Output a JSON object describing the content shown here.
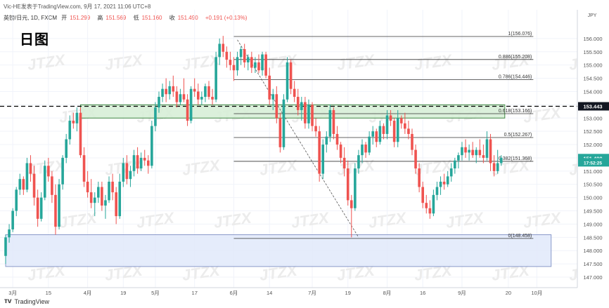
{
  "header": {
    "line1": "Vic-HE发表于TradingView.com, 9月 17, 2021 11:06 UTC+8",
    "symbol": "英镑/日元, 1D, FXCM",
    "open_label": "开",
    "open": "151.299",
    "high_label": "高",
    "high": "151.569",
    "low_label": "低",
    "low": "151.160",
    "close_label": "收",
    "close": "151.490",
    "change": "+0.191 (+0.13%)"
  },
  "title_tag": "日图",
  "currency": "JPY",
  "watermark": "JTZX",
  "footer": {
    "brand": "TradingView"
  },
  "colors": {
    "up": "#26a69a",
    "down": "#ef5350",
    "zone_green": "#d8efd8",
    "zone_blue": "#e3eafb",
    "price_tag_black": "#131722",
    "price_tag_teal": "#26a69a"
  },
  "chart_data": {
    "type": "candlestick",
    "y_range": [
      147.0,
      156.5
    ],
    "y_ticks": [
      "156.000",
      "155.500",
      "155.000",
      "154.500",
      "154.000",
      "153.500",
      "153.000",
      "152.500",
      "152.000",
      "151.500",
      "151.000",
      "150.500",
      "150.000",
      "149.500",
      "149.000",
      "148.500",
      "148.000",
      "147.500",
      "147.000"
    ],
    "x_labels": [
      {
        "label": "3月",
        "day": 2
      },
      {
        "label": "15",
        "day": 12
      },
      {
        "label": "4月",
        "day": 23
      },
      {
        "label": "19",
        "day": 33
      },
      {
        "label": "5月",
        "day": 42
      },
      {
        "label": "17",
        "day": 53
      },
      {
        "label": "6月",
        "day": 64
      },
      {
        "label": "14",
        "day": 74
      },
      {
        "label": "7月",
        "day": 86
      },
      {
        "label": "19",
        "day": 96
      },
      {
        "label": "8月",
        "day": 107
      },
      {
        "label": "16",
        "day": 117
      },
      {
        "label": "9月",
        "day": 128
      },
      {
        "label": "20",
        "day": 141
      },
      {
        "label": "10月",
        "day": 149
      }
    ],
    "price_labels": [
      {
        "text": "153.443",
        "value": 153.443,
        "style": "black"
      },
      {
        "text": "151.490",
        "value": 151.49,
        "style": "teal"
      },
      {
        "text": "17:52:25",
        "value": 151.33,
        "style": "teal-small"
      }
    ],
    "fibonacci": {
      "start_day": 64,
      "end_day": 148,
      "levels": [
        {
          "label": "1(156.076)",
          "value": 156.076
        },
        {
          "label": "0.886(155.208)",
          "value": 155.208
        },
        {
          "label": "0.786(154.446)",
          "value": 154.446
        },
        {
          "label": "0.618(153.166)",
          "value": 153.166
        },
        {
          "label": "0.5(152.267)",
          "value": 152.267
        },
        {
          "label": "0.382(151.368)",
          "value": 151.368
        },
        {
          "label": "0(148.458)",
          "value": 148.458
        }
      ]
    },
    "zones": [
      {
        "name": "resistance",
        "from_day": 21,
        "to_day": 140,
        "low": 153.0,
        "high": 153.5
      },
      {
        "name": "support",
        "from_day": 0,
        "to_day": 153,
        "low": 147.4,
        "high": 148.6
      }
    ],
    "dashed_level": 153.443,
    "diagonal": {
      "from_day": 65,
      "from_value": 155.95,
      "to_day": 99,
      "to_value": 148.5
    },
    "candles": [
      [
        147.8,
        148.6,
        147.5,
        148.5
      ],
      [
        148.5,
        149.0,
        148.3,
        148.8
      ],
      [
        148.8,
        149.6,
        148.7,
        149.5
      ],
      [
        149.5,
        150.4,
        149.3,
        150.3
      ],
      [
        150.3,
        150.9,
        150.1,
        150.7
      ],
      [
        150.7,
        150.8,
        150.1,
        150.3
      ],
      [
        150.3,
        151.5,
        150.2,
        151.3
      ],
      [
        151.3,
        151.6,
        150.6,
        150.9
      ],
      [
        150.9,
        151.2,
        149.7,
        150.0
      ],
      [
        150.0,
        150.3,
        148.9,
        149.2
      ],
      [
        149.2,
        150.2,
        149.1,
        150.0
      ],
      [
        150.0,
        151.4,
        149.9,
        151.2
      ],
      [
        151.2,
        151.5,
        150.6,
        150.8
      ],
      [
        150.8,
        151.0,
        149.8,
        150.1
      ],
      [
        150.1,
        150.5,
        148.6,
        148.9
      ],
      [
        148.9,
        150.7,
        148.8,
        150.5
      ],
      [
        150.5,
        151.6,
        150.3,
        151.5
      ],
      [
        151.5,
        152.4,
        151.3,
        152.2
      ],
      [
        152.2,
        153.1,
        152.0,
        152.9
      ],
      [
        152.9,
        153.2,
        152.6,
        152.8
      ],
      [
        152.8,
        153.4,
        152.5,
        153.2
      ],
      [
        153.2,
        153.4,
        151.5,
        151.6
      ],
      [
        151.6,
        151.9,
        150.4,
        150.6
      ],
      [
        150.6,
        151.0,
        150.0,
        150.2
      ],
      [
        150.2,
        150.7,
        149.6,
        149.8
      ],
      [
        149.8,
        150.2,
        149.3,
        150.0
      ],
      [
        150.0,
        150.6,
        149.8,
        150.4
      ],
      [
        150.4,
        150.6,
        149.5,
        149.7
      ],
      [
        149.7,
        150.1,
        149.2,
        149.9
      ],
      [
        149.9,
        150.8,
        149.8,
        150.6
      ],
      [
        150.6,
        150.9,
        149.9,
        150.2
      ],
      [
        150.2,
        150.4,
        149.0,
        149.3
      ],
      [
        149.3,
        150.9,
        149.2,
        150.6
      ],
      [
        150.6,
        151.5,
        150.4,
        151.3
      ],
      [
        151.3,
        151.6,
        150.5,
        150.7
      ],
      [
        150.7,
        151.2,
        150.4,
        151.0
      ],
      [
        151.0,
        151.8,
        150.8,
        151.6
      ],
      [
        151.6,
        151.9,
        150.9,
        151.1
      ],
      [
        151.1,
        151.7,
        151.0,
        151.5
      ],
      [
        151.5,
        151.8,
        151.2,
        151.4
      ],
      [
        151.4,
        151.6,
        150.9,
        151.2
      ],
      [
        151.2,
        152.9,
        151.1,
        152.7
      ],
      [
        152.7,
        153.6,
        152.5,
        153.4
      ],
      [
        153.4,
        154.0,
        153.2,
        153.8
      ],
      [
        153.8,
        154.3,
        153.6,
        154.1
      ],
      [
        154.1,
        154.5,
        153.6,
        153.9
      ],
      [
        153.9,
        154.4,
        153.7,
        154.2
      ],
      [
        154.2,
        154.6,
        153.8,
        154.0
      ],
      [
        154.0,
        154.2,
        153.4,
        153.6
      ],
      [
        153.6,
        154.1,
        153.5,
        153.9
      ],
      [
        153.9,
        154.5,
        153.6,
        153.7
      ],
      [
        153.7,
        153.9,
        152.7,
        152.9
      ],
      [
        152.9,
        154.2,
        152.8,
        154.1
      ],
      [
        154.1,
        154.5,
        153.8,
        154.0
      ],
      [
        154.0,
        154.3,
        153.5,
        153.7
      ],
      [
        153.7,
        154.0,
        153.5,
        153.8
      ],
      [
        153.8,
        154.3,
        153.6,
        154.2
      ],
      [
        154.2,
        154.4,
        153.7,
        153.8
      ],
      [
        153.8,
        154.1,
        153.5,
        153.7
      ],
      [
        153.7,
        155.5,
        153.6,
        155.3
      ],
      [
        155.3,
        156.0,
        155.0,
        155.8
      ],
      [
        155.8,
        156.1,
        155.3,
        155.5
      ],
      [
        155.5,
        155.7,
        154.9,
        155.2
      ],
      [
        155.2,
        155.5,
        154.8,
        155.0
      ],
      [
        155.0,
        155.3,
        154.4,
        154.8
      ],
      [
        154.8,
        155.5,
        154.6,
        155.3
      ],
      [
        155.3,
        155.7,
        155.0,
        155.6
      ],
      [
        155.6,
        155.8,
        154.9,
        155.1
      ],
      [
        155.1,
        155.4,
        154.8,
        155.3
      ],
      [
        155.3,
        155.5,
        154.7,
        154.9
      ],
      [
        154.9,
        155.3,
        154.7,
        155.1
      ],
      [
        155.1,
        155.4,
        154.7,
        154.8
      ],
      [
        154.8,
        155.5,
        154.6,
        155.4
      ],
      [
        155.4,
        155.5,
        154.5,
        154.6
      ],
      [
        154.6,
        154.9,
        153.5,
        153.7
      ],
      [
        153.7,
        154.1,
        153.3,
        153.9
      ],
      [
        153.9,
        154.2,
        152.8,
        153.0
      ],
      [
        153.0,
        153.2,
        151.7,
        151.9
      ],
      [
        151.9,
        153.9,
        151.8,
        153.7
      ],
      [
        153.7,
        155.3,
        153.6,
        155.1
      ],
      [
        155.1,
        155.2,
        153.9,
        154.1
      ],
      [
        154.1,
        154.4,
        153.6,
        153.8
      ],
      [
        153.8,
        154.1,
        153.1,
        153.3
      ],
      [
        153.3,
        153.8,
        152.9,
        153.6
      ],
      [
        153.6,
        153.8,
        152.6,
        152.8
      ],
      [
        152.8,
        153.7,
        152.6,
        153.5
      ],
      [
        153.5,
        153.6,
        152.5,
        152.7
      ],
      [
        152.7,
        153.0,
        152.3,
        152.5
      ],
      [
        152.5,
        152.7,
        150.6,
        150.9
      ],
      [
        150.9,
        152.2,
        150.7,
        152.0
      ],
      [
        152.0,
        152.5,
        151.7,
        152.3
      ],
      [
        152.3,
        153.5,
        152.1,
        153.3
      ],
      [
        153.3,
        153.4,
        152.2,
        152.4
      ],
      [
        152.4,
        152.7,
        151.8,
        152.0
      ],
      [
        152.0,
        152.1,
        151.3,
        151.5
      ],
      [
        151.5,
        151.9,
        150.8,
        151.1
      ],
      [
        151.1,
        151.4,
        149.7,
        149.9
      ],
      [
        149.9,
        150.1,
        148.5,
        149.6
      ],
      [
        149.6,
        151.3,
        149.5,
        151.1
      ],
      [
        151.1,
        151.8,
        150.9,
        151.6
      ],
      [
        151.6,
        152.2,
        151.3,
        152.0
      ],
      [
        152.0,
        152.1,
        151.5,
        151.7
      ],
      [
        151.7,
        152.5,
        151.6,
        152.3
      ],
      [
        152.3,
        152.7,
        152.0,
        152.5
      ],
      [
        152.5,
        152.6,
        151.9,
        152.1
      ],
      [
        152.1,
        152.9,
        152.0,
        152.7
      ],
      [
        152.7,
        152.8,
        152.2,
        152.4
      ],
      [
        152.4,
        153.3,
        152.2,
        153.1
      ],
      [
        153.1,
        153.3,
        152.7,
        152.9
      ],
      [
        152.9,
        153.0,
        151.9,
        152.1
      ],
      [
        152.1,
        153.3,
        151.9,
        153.0
      ],
      [
        153.0,
        153.1,
        152.6,
        152.8
      ],
      [
        152.8,
        153.2,
        152.4,
        152.6
      ],
      [
        152.6,
        152.9,
        152.2,
        152.4
      ],
      [
        152.4,
        152.6,
        151.6,
        151.8
      ],
      [
        151.8,
        152.0,
        150.9,
        151.1
      ],
      [
        151.1,
        151.3,
        150.2,
        150.4
      ],
      [
        150.4,
        150.6,
        149.6,
        149.8
      ],
      [
        149.8,
        150.1,
        149.4,
        149.6
      ],
      [
        149.6,
        149.9,
        149.2,
        149.4
      ],
      [
        149.4,
        150.3,
        149.3,
        150.1
      ],
      [
        150.1,
        150.6,
        149.9,
        150.4
      ],
      [
        150.4,
        150.8,
        150.1,
        150.6
      ],
      [
        150.6,
        150.9,
        150.3,
        150.5
      ],
      [
        150.5,
        151.0,
        150.4,
        150.8
      ],
      [
        150.8,
        151.3,
        150.6,
        151.1
      ],
      [
        151.1,
        151.5,
        150.9,
        151.4
      ],
      [
        151.4,
        151.7,
        151.1,
        151.6
      ],
      [
        151.6,
        152.1,
        151.4,
        151.9
      ],
      [
        151.9,
        152.2,
        151.5,
        151.7
      ],
      [
        151.7,
        152.0,
        151.4,
        151.8
      ],
      [
        151.8,
        152.1,
        151.5,
        151.6
      ],
      [
        151.6,
        151.9,
        151.3,
        151.8
      ],
      [
        151.8,
        152.2,
        151.5,
        151.6
      ],
      [
        151.6,
        152.0,
        151.3,
        151.5
      ],
      [
        151.5,
        152.5,
        151.4,
        152.2
      ],
      [
        152.2,
        152.4,
        151.0,
        151.3
      ],
      [
        151.3,
        151.6,
        150.8,
        151.0
      ],
      [
        151.0,
        151.8,
        150.9,
        151.3
      ],
      [
        151.3,
        151.6,
        151.2,
        151.5
      ]
    ]
  }
}
